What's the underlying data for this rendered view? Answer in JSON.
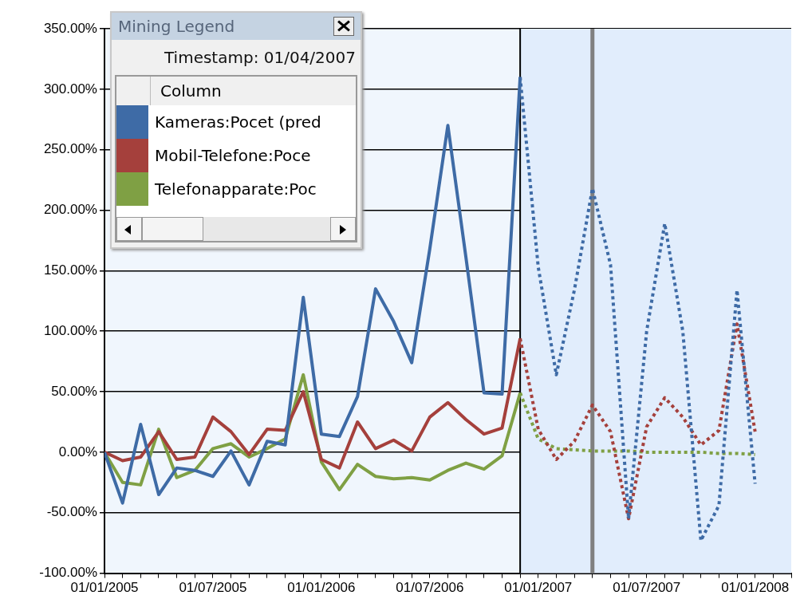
{
  "chart_data": {
    "type": "line",
    "legend_title": "Mining Legend",
    "legend": "top left",
    "grid": "y",
    "marker": "none",
    "line_style": "solid",
    "annotations": [
      "Timestamp: 01/04/2007",
      "Column"
    ],
    "x": [
      "2005-01",
      "2005-02",
      "2005-03",
      "2005-04",
      "2005-05",
      "2005-06",
      "2005-07",
      "2005-08",
      "2005-09",
      "2005-10",
      "2005-11",
      "2005-12",
      "2006-01",
      "2006-02",
      "2006-03",
      "2006-04",
      "2006-05",
      "2006-06",
      "2006-07",
      "2006-08",
      "2006-09",
      "2006-10",
      "2006-11",
      "2006-12",
      "2007-01",
      "2007-02",
      "2007-03",
      "2007-04",
      "2007-05",
      "2007-06",
      "2007-07",
      "2007-08",
      "2007-09",
      "2007-10",
      "2007-11",
      "2007-12",
      "2008-01"
    ],
    "xlim": [
      "2005-01",
      "2008-03"
    ],
    "xticks": [
      {
        "value": "2005-01",
        "label": "01/01/2005"
      },
      {
        "value": "2005-02",
        "label": null
      },
      {
        "value": "2005-03",
        "label": null
      },
      {
        "value": "2005-04",
        "label": null
      },
      {
        "value": "2005-05",
        "label": null
      },
      {
        "value": "2005-06",
        "label": null
      },
      {
        "value": "2005-07",
        "label": "01/07/2005"
      },
      {
        "value": "2005-08",
        "label": null
      },
      {
        "value": "2005-09",
        "label": null
      },
      {
        "value": "2005-10",
        "label": null
      },
      {
        "value": "2005-11",
        "label": null
      },
      {
        "value": "2005-12",
        "label": null
      },
      {
        "value": "2006-01",
        "label": "01/01/2006"
      },
      {
        "value": "2006-02",
        "label": null
      },
      {
        "value": "2006-03",
        "label": null
      },
      {
        "value": "2006-04",
        "label": null
      },
      {
        "value": "2006-05",
        "label": null
      },
      {
        "value": "2006-06",
        "label": null
      },
      {
        "value": "2006-07",
        "label": "01/07/2006"
      },
      {
        "value": "2006-08",
        "label": null
      },
      {
        "value": "2006-09",
        "label": null
      },
      {
        "value": "2006-10",
        "label": null
      },
      {
        "value": "2006-11",
        "label": null
      },
      {
        "value": "2006-12",
        "label": null
      },
      {
        "value": "2007-01",
        "label": "01/01/2007"
      },
      {
        "value": "2007-02",
        "label": null
      },
      {
        "value": "2007-03",
        "label": null
      },
      {
        "value": "2007-04",
        "label": null
      },
      {
        "value": "2007-05",
        "label": null
      },
      {
        "value": "2007-06",
        "label": null
      },
      {
        "value": "2007-07",
        "label": "01/07/2007"
      },
      {
        "value": "2007-08",
        "label": null
      },
      {
        "value": "2007-09",
        "label": null
      },
      {
        "value": "2007-10",
        "label": null
      },
      {
        "value": "2007-11",
        "label": null
      },
      {
        "value": "2007-12",
        "label": null
      },
      {
        "value": "2008-01",
        "label": "01/01/2008"
      },
      {
        "value": "2008-02",
        "label": null
      },
      {
        "value": "2008-03",
        "label": null
      }
    ],
    "ylim": [
      -100,
      350
    ],
    "yticks": [
      {
        "value": -100,
        "label": "-100.00%"
      },
      {
        "value": -50,
        "label": "-50.00%"
      },
      {
        "value": 0,
        "label": "0.00%"
      },
      {
        "value": 50,
        "label": "50.00%"
      },
      {
        "value": 100,
        "label": "100.00%"
      },
      {
        "value": 150,
        "label": "150.00%"
      },
      {
        "value": 200,
        "label": "200.00%"
      },
      {
        "value": 250,
        "label": "250.00%"
      },
      {
        "value": 300,
        "label": "300.00%"
      },
      {
        "value": 350,
        "label": "350.00%"
      }
    ],
    "bands": [
      {
        "axis": "x",
        "from": "2006-12",
        "to": "2008-03",
        "color": "#e1edfc"
      }
    ],
    "ref_lines": [
      {
        "axis": "x",
        "value": "2006-12",
        "color": "#000000"
      },
      {
        "axis": "x",
        "value": "2007-04",
        "color": "#808080"
      }
    ],
    "series": [
      {
        "name": "Kameras:Pocet (pred",
        "color": "#3e6ba6",
        "values": [
          0,
          -42,
          23,
          -35,
          -13,
          -15,
          -20,
          1,
          -27,
          9,
          6,
          128,
          15,
          13,
          46,
          135,
          108,
          74,
          168,
          270,
          161,
          49,
          48,
          310,
          null,
          null,
          null,
          null,
          null,
          null,
          null,
          null,
          null,
          null,
          null,
          null,
          null
        ]
      },
      {
        "name": "Mobil-Telefone:Poce",
        "color": "#a5403c",
        "values": [
          0,
          -7,
          -4,
          17,
          -6,
          -4,
          29,
          17,
          -2,
          19,
          18,
          50,
          -6,
          -13,
          25,
          3,
          10,
          1,
          29,
          41,
          27,
          15,
          20,
          94,
          null,
          null,
          null,
          null,
          null,
          null,
          null,
          null,
          null,
          null,
          null,
          null,
          null
        ]
      },
      {
        "name": "Telefonapparate:Poc",
        "color": "#7fa044",
        "values": [
          0,
          -25,
          -27,
          19,
          -21,
          -15,
          3,
          7,
          -4,
          3,
          11,
          64,
          -8,
          -31,
          -10,
          -20,
          -22,
          -21,
          -23,
          -15,
          -9,
          -14,
          -3,
          49,
          null,
          null,
          null,
          null,
          null,
          null,
          null,
          null,
          null,
          null,
          null,
          null,
          null
        ]
      },
      {
        "color": "#3e6ba6",
        "line_style": "dotted",
        "values": [
          null,
          null,
          null,
          null,
          null,
          null,
          null,
          null,
          null,
          null,
          null,
          null,
          null,
          null,
          null,
          null,
          null,
          null,
          null,
          null,
          null,
          null,
          null,
          310,
          153,
          64,
          134,
          218,
          155,
          -55,
          100,
          189,
          100,
          -73,
          -44,
          134,
          -26
        ]
      },
      {
        "color": "#a5403c",
        "line_style": "dotted",
        "values": [
          null,
          null,
          null,
          null,
          null,
          null,
          null,
          null,
          null,
          null,
          null,
          null,
          null,
          null,
          null,
          null,
          null,
          null,
          null,
          null,
          null,
          null,
          null,
          94,
          19,
          -6,
          9,
          39,
          17,
          -55,
          21,
          45,
          29,
          6,
          18,
          106,
          17
        ]
      },
      {
        "color": "#7fa044",
        "line_style": "dotted",
        "values": [
          null,
          null,
          null,
          null,
          null,
          null,
          null,
          null,
          null,
          null,
          null,
          null,
          null,
          null,
          null,
          null,
          null,
          null,
          null,
          null,
          null,
          null,
          null,
          49,
          11,
          3,
          2,
          1,
          1,
          1,
          0,
          0,
          0,
          0,
          -1,
          -1,
          -2
        ]
      }
    ]
  }
}
